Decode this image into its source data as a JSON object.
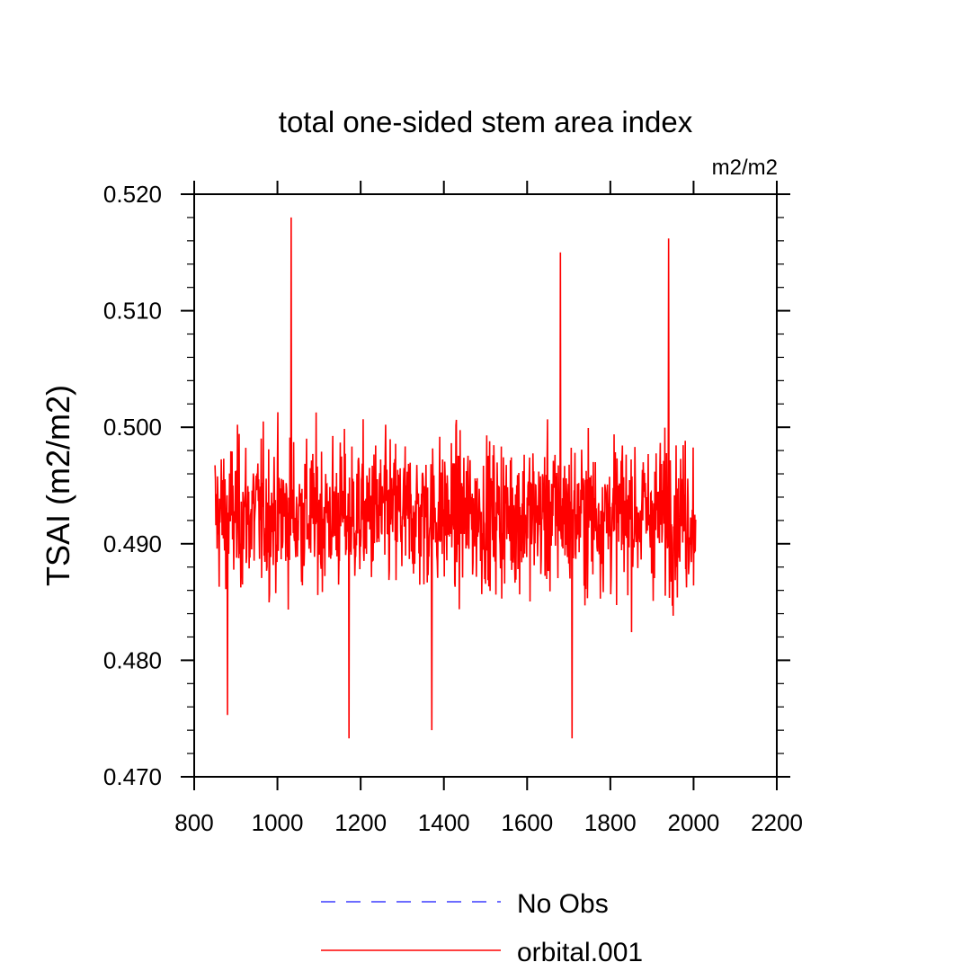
{
  "chart_data": {
    "type": "line",
    "title": "total one-sided stem area index",
    "units": "m2/m2",
    "xlabel": "",
    "ylabel": "TSAI  (m2/m2)",
    "xlim": [
      800,
      2200
    ],
    "ylim": [
      0.47,
      0.52
    ],
    "xticks": [
      "800",
      "1000",
      "1200",
      "1400",
      "1600",
      "1800",
      "2000",
      "2200"
    ],
    "yticks": [
      "0.470",
      "0.480",
      "0.490",
      "0.500",
      "0.510",
      "0.520"
    ],
    "legend_position": "bottom-center",
    "series": [
      {
        "name": "No Obs",
        "color": "#3b3bff",
        "style": "dashed",
        "x": [],
        "values": []
      },
      {
        "name": "orbital.001",
        "color": "#ff0000",
        "style": "solid",
        "x_range": [
          850,
          2005
        ],
        "mean": 0.4925,
        "spread": 0.0045,
        "min": 0.4733,
        "max": 0.518,
        "peaks": [
          {
            "x": 880,
            "y": 0.4753
          },
          {
            "x": 1033,
            "y": 0.518
          },
          {
            "x": 1172,
            "y": 0.4733
          },
          {
            "x": 1371,
            "y": 0.474
          },
          {
            "x": 1680,
            "y": 0.515
          },
          {
            "x": 1708,
            "y": 0.4733
          },
          {
            "x": 1940,
            "y": 0.5162
          }
        ]
      }
    ]
  }
}
